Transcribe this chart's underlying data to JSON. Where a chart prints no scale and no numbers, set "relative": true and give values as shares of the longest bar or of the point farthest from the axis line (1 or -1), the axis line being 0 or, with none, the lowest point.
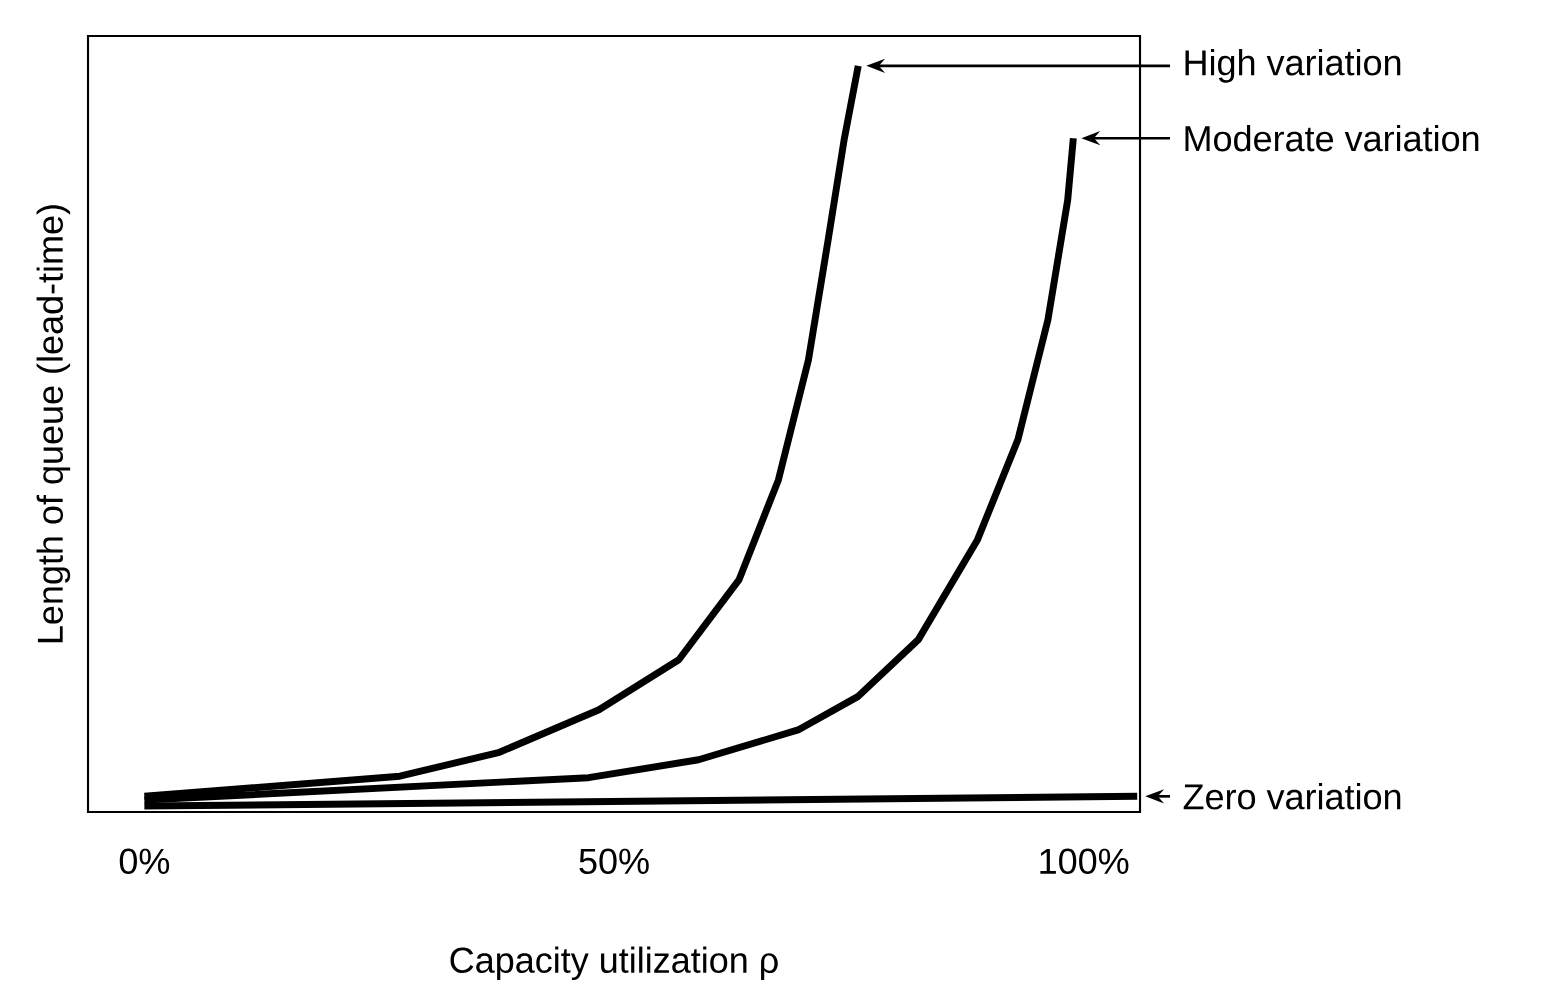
{
  "chart_data": {
    "type": "line",
    "relative": true,
    "xlabel": "Capacity utilization ρ",
    "ylabel": "Length of queue (lead-time)",
    "xlim": [
      -6,
      106
    ],
    "xticks": [
      {
        "value": 0,
        "label": "0%"
      },
      {
        "value": 50,
        "label": "50%"
      },
      {
        "value": 100,
        "label": "100%"
      }
    ],
    "grid": false,
    "legend": "right",
    "marker": "none",
    "line_style": "solid",
    "tick_labels": "x",
    "series": [
      {
        "name": "High variation",
        "color": "#000000",
        "x": [
          0,
          27.2,
          37.8,
          48.4,
          56.9,
          63.3,
          67.5,
          70.7,
          72.8,
          74.5,
          76.0
        ],
        "values": [
          0.021,
          0.048,
          0.08,
          0.137,
          0.204,
          0.311,
          0.445,
          0.606,
          0.767,
          0.901,
          1
        ]
      },
      {
        "name": "Moderate variation",
        "color": "#000000",
        "x": [
          0,
          47.3,
          59.0,
          69.6,
          76.0,
          82.4,
          88.7,
          93.0,
          96.2,
          98.3,
          98.9
        ],
        "values": [
          0.016,
          0.046,
          0.07,
          0.11,
          0.155,
          0.231,
          0.365,
          0.499,
          0.66,
          0.82,
          0.903
        ]
      },
      {
        "name": "Zero variation",
        "color": "#000000",
        "x": [
          0,
          105.7
        ],
        "values": [
          0.008,
          0.021
        ]
      }
    ]
  }
}
